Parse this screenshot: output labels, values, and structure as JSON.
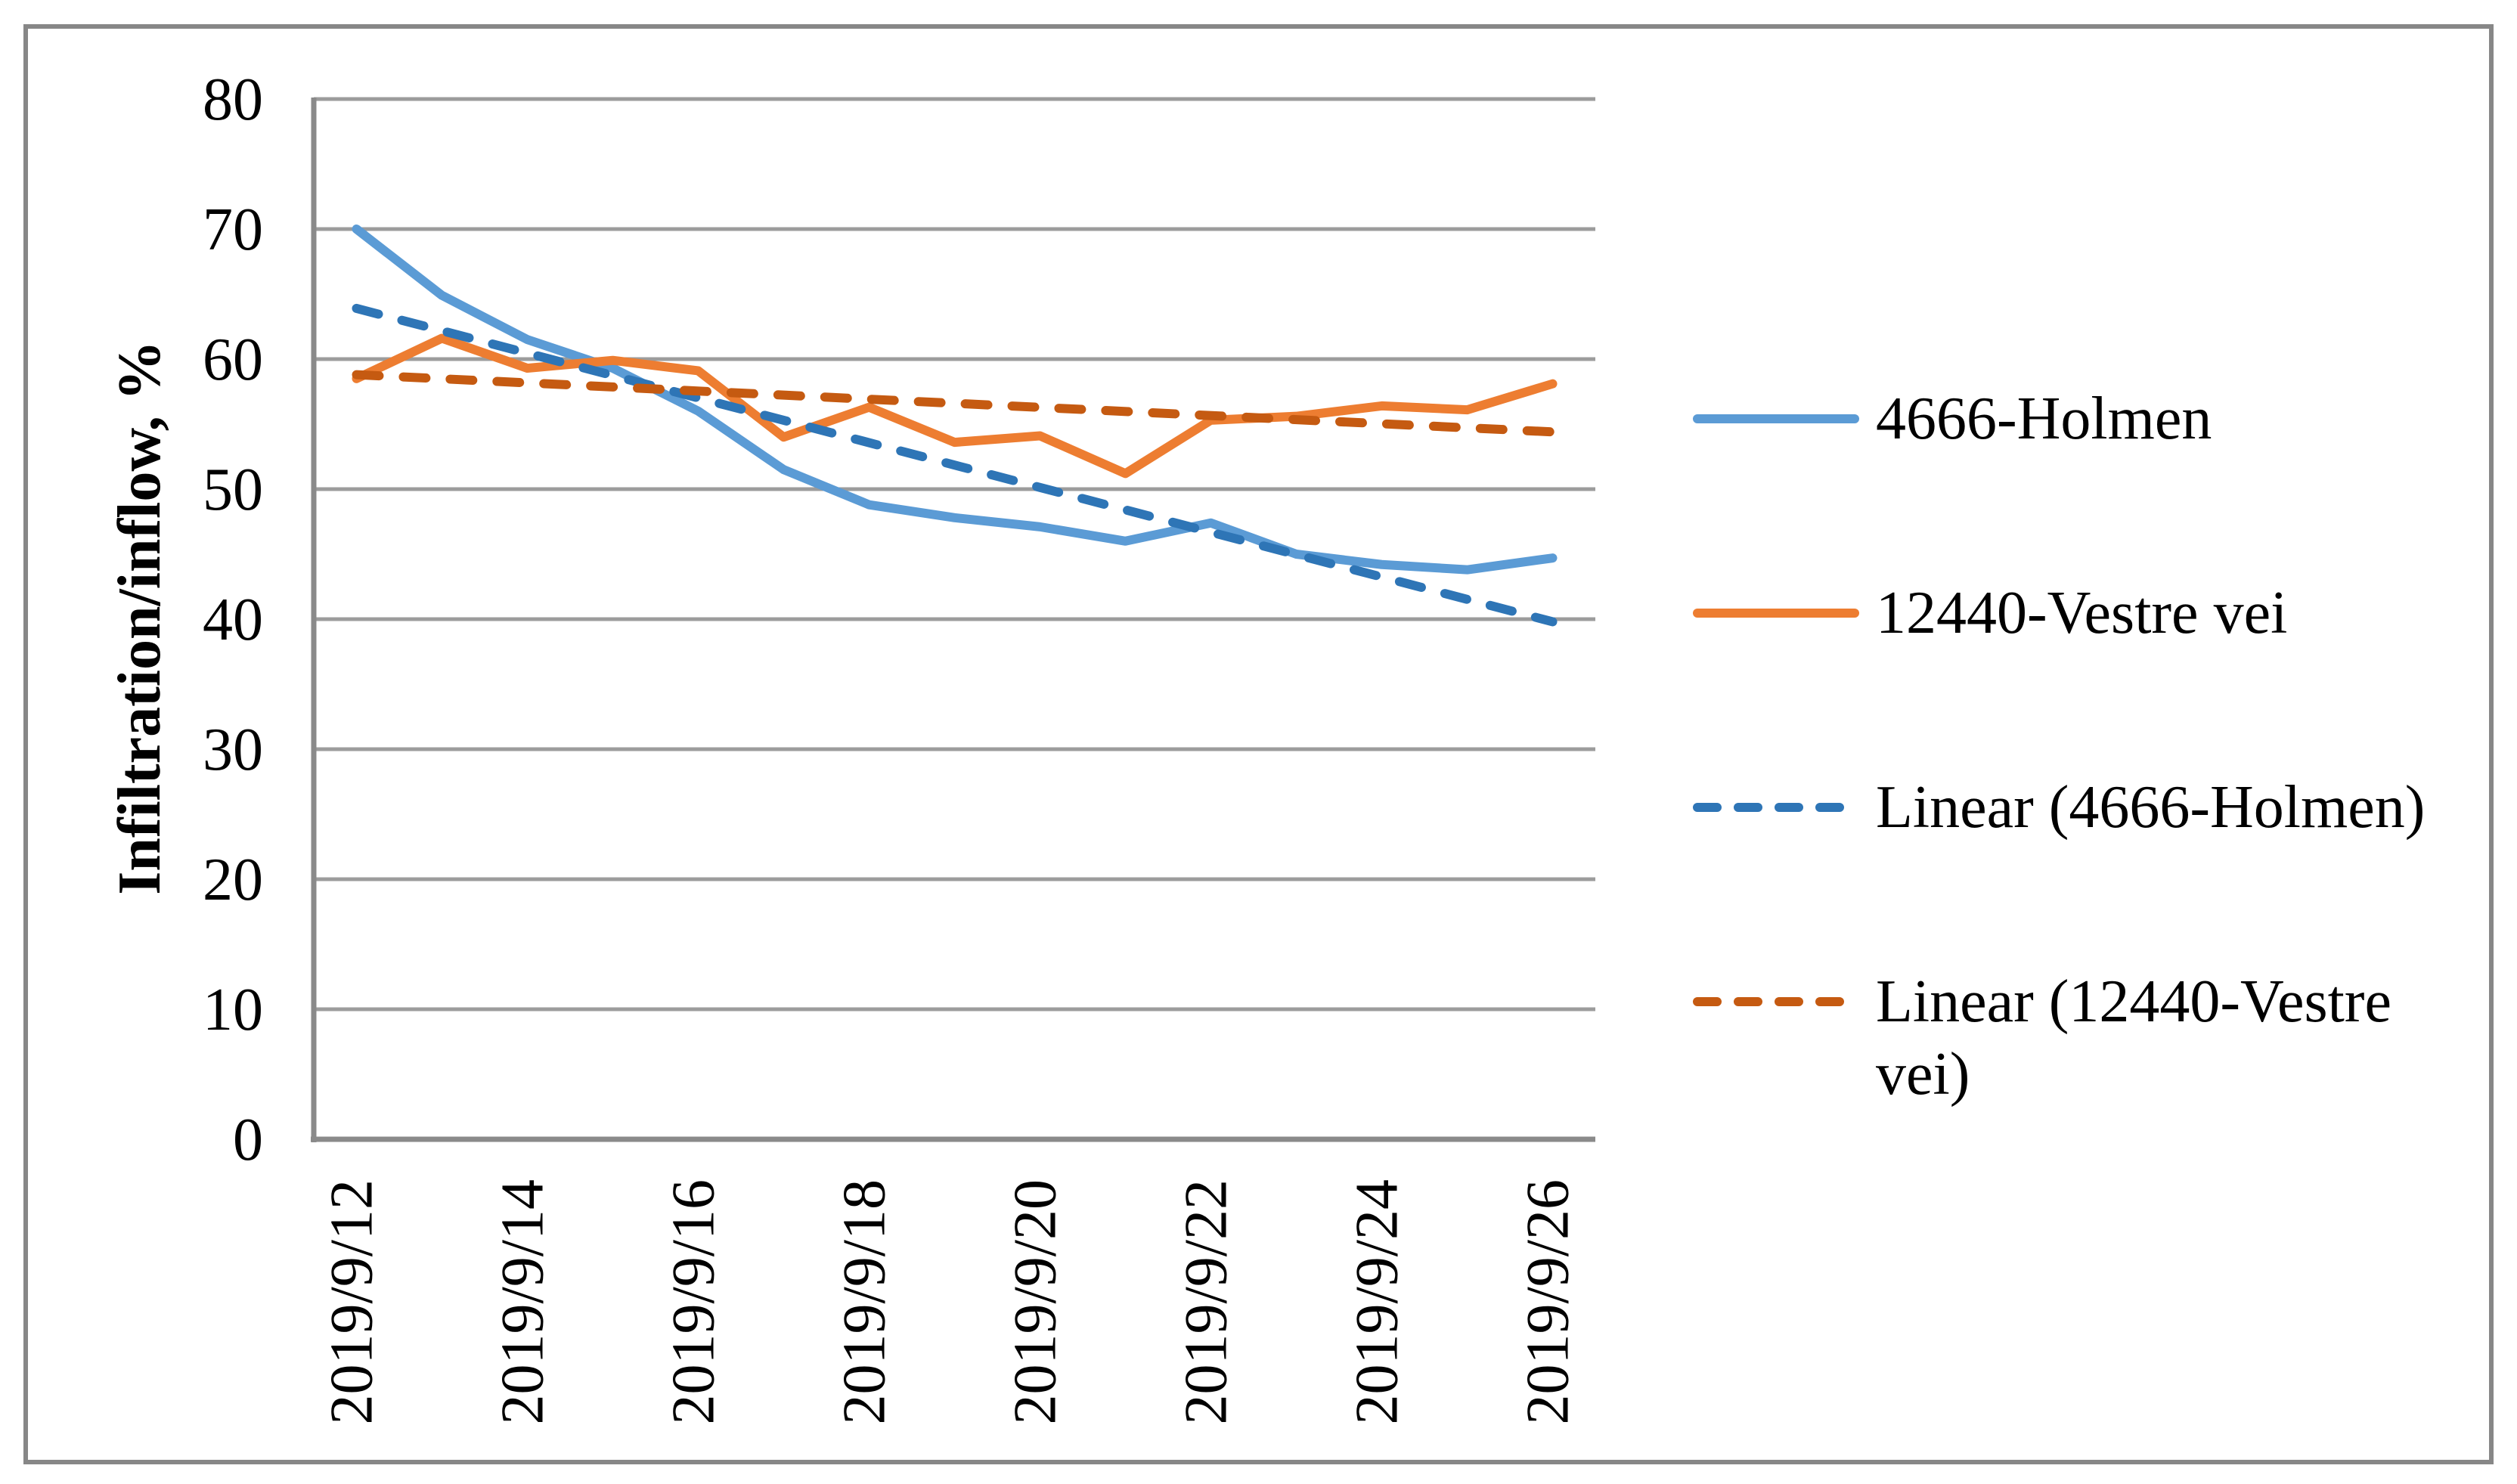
{
  "style": {
    "background": "#FFFFFF",
    "border_color": "#878787",
    "gridline_color": "#9C9C9C",
    "axis_color": "#8A8A8A",
    "text_color": "#000000"
  },
  "chart_data": {
    "type": "line",
    "title": "",
    "xlabel": "",
    "ylabel": "Infiltration/inflow, %",
    "ylim": [
      0,
      80
    ],
    "ytick_step": 10,
    "grid": "horizontal",
    "legend_position": "right",
    "x_label_step": 2,
    "x": [
      "2019/9/12",
      "2019/9/13",
      "2019/9/14",
      "2019/9/15",
      "2019/9/16",
      "2019/9/17",
      "2019/9/18",
      "2019/9/19",
      "2019/9/20",
      "2019/9/21",
      "2019/9/22",
      "2019/9/23",
      "2019/9/24",
      "2019/9/25",
      "2019/9/26"
    ],
    "x_tick_labels_shown": [
      "2019/9/12",
      "2019/9/14",
      "2019/9/16",
      "2019/9/18",
      "2019/9/20",
      "2019/9/22",
      "2019/9/24",
      "2019/9/26"
    ],
    "y_tick_labels": [
      "0",
      "10",
      "20",
      "30",
      "40",
      "50",
      "60",
      "70",
      "80"
    ],
    "series": [
      {
        "name": "4666-Holmen",
        "style": "solid",
        "color": "#5B9BD5",
        "values": [
          70,
          64.9,
          61.5,
          59.3,
          56.0,
          51.5,
          48.8,
          47.8,
          47.1,
          46.0,
          47.4,
          45.0,
          44.2,
          43.8,
          44.7
        ]
      },
      {
        "name": "12440-Vestre vei",
        "style": "solid",
        "color": "#ED7D31",
        "values": [
          58.5,
          61.6,
          59.3,
          59.9,
          59.1,
          54.0,
          56.3,
          53.6,
          54.1,
          51.2,
          55.3,
          55.6,
          56.4,
          56.1,
          58.1
        ]
      },
      {
        "name": "Linear (4666-Holmen)",
        "style": "dashed",
        "color": "#2E75B6",
        "trend_of": "4666-Holmen",
        "endpoints": [
          63.9,
          39.8
        ]
      },
      {
        "name": "Linear (12440-Vestre vei)",
        "style": "dashed",
        "color": "#C55A11",
        "trend_of": "12440-Vestre vei",
        "endpoints": [
          58.8,
          54.4
        ]
      }
    ]
  },
  "legend": {
    "items": [
      {
        "label": "4666-Holmen",
        "color": "#5B9BD5",
        "dashed": false
      },
      {
        "label": "12440-Vestre vei",
        "color": "#ED7D31",
        "dashed": false
      },
      {
        "label": "Linear (4666-Holmen)",
        "color": "#2E75B6",
        "dashed": true
      },
      {
        "label": "Linear (12440-Vestre vei)",
        "color": "#C55A11",
        "dashed": true,
        "lines": [
          "Linear (12440-Vestre",
          "vei)"
        ]
      }
    ]
  }
}
